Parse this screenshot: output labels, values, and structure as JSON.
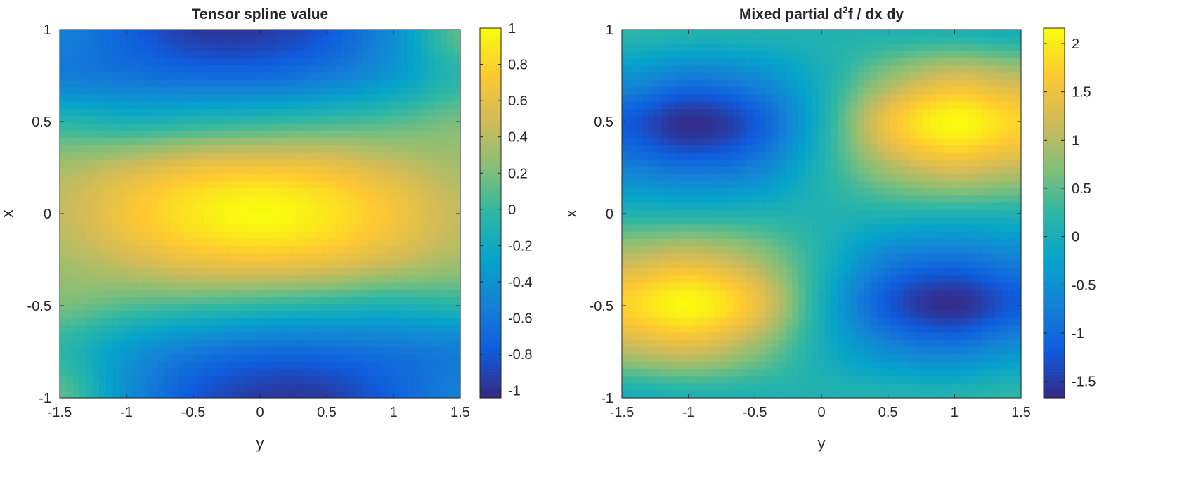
{
  "chart_data": [
    {
      "type": "heatmap",
      "title": "Tensor spline value",
      "xlabel": "y",
      "ylabel": "x",
      "x_values": [
        -1.5,
        -1,
        -0.5,
        0,
        0.5,
        1,
        1.5
      ],
      "y_values": [
        1,
        0.75,
        0.5,
        0.25,
        0,
        -0.25,
        -0.5,
        -0.75,
        -1
      ],
      "z": [
        [
          -0.55,
          -0.75,
          -0.95,
          -0.95,
          -0.8,
          -0.45,
          0.1
        ],
        [
          -0.55,
          -0.6,
          -0.65,
          -0.65,
          -0.55,
          -0.35,
          -0.05
        ],
        [
          -0.05,
          -0.1,
          -0.05,
          0,
          0.05,
          0.1,
          0.2
        ],
        [
          0.35,
          0.5,
          0.65,
          0.7,
          0.65,
          0.5,
          0.35
        ],
        [
          0.45,
          0.7,
          0.9,
          1.0,
          0.9,
          0.7,
          0.45
        ],
        [
          0.35,
          0.5,
          0.65,
          0.7,
          0.65,
          0.5,
          0.35
        ],
        [
          0.2,
          0.1,
          0.05,
          0,
          -0.05,
          -0.1,
          -0.05
        ],
        [
          -0.05,
          -0.35,
          -0.55,
          -0.65,
          -0.65,
          -0.6,
          -0.55
        ],
        [
          0.1,
          -0.45,
          -0.8,
          -0.95,
          -0.95,
          -0.75,
          -0.55
        ]
      ],
      "xlim": [
        -1.5,
        1.5
      ],
      "ylim": [
        -1,
        1
      ],
      "xticks": [
        "-1.5",
        "-1",
        "-0.5",
        "0",
        "0.5",
        "1",
        "1.5"
      ],
      "yticks": [
        "1",
        "0.5",
        "0",
        "-0.5",
        "-1"
      ],
      "colorbar": {
        "clim": [
          -1.04,
          1.0
        ],
        "ticks": [
          "1",
          "0.8",
          "0.6",
          "0.4",
          "0.2",
          "0",
          "-0.2",
          "-0.4",
          "-0.6",
          "-0.8",
          "-1"
        ]
      },
      "colormap": "parula"
    },
    {
      "type": "heatmap",
      "title": "Mixed partial d2f / dx dy",
      "title_parts": {
        "pre": "Mixed partial d",
        "sup": "2",
        "post": "f / dx dy"
      },
      "xlabel": "y",
      "ylabel": "x",
      "x_values": [
        -1.5,
        -1,
        -0.5,
        0,
        0.5,
        1,
        1.5
      ],
      "y_values": [
        1,
        0.75,
        0.5,
        0.25,
        0,
        -0.25,
        -0.5,
        -0.75,
        -1
      ],
      "z": [
        [
          0.2,
          0.1,
          0.1,
          0.1,
          0.1,
          0.1,
          0.0
        ],
        [
          -0.5,
          -0.8,
          -0.6,
          0,
          0.8,
          1.3,
          1.1
        ],
        [
          -1.2,
          -1.65,
          -1.2,
          0,
          1.5,
          2.15,
          1.8
        ],
        [
          -0.7,
          -0.9,
          -0.7,
          0.1,
          0.9,
          1.3,
          1.1
        ],
        [
          0.1,
          0.1,
          0.1,
          0.1,
          0.1,
          0.1,
          0.1
        ],
        [
          1.1,
          1.3,
          0.9,
          0.1,
          -0.7,
          -0.9,
          -0.7
        ],
        [
          1.8,
          2.15,
          1.5,
          0,
          -1.2,
          -1.65,
          -1.2
        ],
        [
          1.1,
          1.3,
          0.8,
          0,
          -0.6,
          -0.8,
          -0.5
        ],
        [
          0.0,
          0.1,
          0.1,
          0.1,
          0.1,
          0.1,
          0.2
        ]
      ],
      "xlim": [
        -1.5,
        1.5
      ],
      "ylim": [
        -1,
        1
      ],
      "xticks": [
        "-1.5",
        "-1",
        "-0.5",
        "0",
        "0.5",
        "1",
        "1.5"
      ],
      "yticks": [
        "1",
        "0.5",
        "0",
        "-0.5",
        "-1"
      ],
      "colorbar": {
        "clim": [
          -1.67,
          2.16
        ],
        "ticks": [
          "2",
          "1.5",
          "1",
          "0.5",
          "0",
          "-0.5",
          "-1",
          "-1.5"
        ]
      },
      "colormap": "parula"
    }
  ],
  "colors": {
    "parula": [
      "#352A87",
      "#0F5CDD",
      "#1481D6",
      "#06A4CA",
      "#2EB7A4",
      "#87BF77",
      "#D1BB59",
      "#FEC832",
      "#F9FB0E"
    ],
    "axis": "#262626"
  }
}
